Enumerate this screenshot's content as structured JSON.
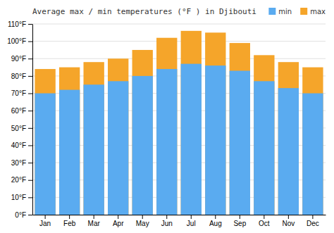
{
  "chart_data": {
    "type": "bar",
    "title": "Average max / min temperatures (°F ) in Djibouti",
    "categories": [
      "Jan",
      "Feb",
      "Mar",
      "Apr",
      "May",
      "Jun",
      "Jul",
      "Aug",
      "Sep",
      "Oct",
      "Nov",
      "Dec"
    ],
    "series": [
      {
        "name": "min",
        "color": "#5aabf0",
        "values": [
          70,
          72,
          75,
          77,
          80,
          84,
          87,
          86,
          83,
          77,
          73,
          70
        ]
      },
      {
        "name": "max",
        "color": "#f5a52a",
        "values": [
          84,
          85,
          88,
          90,
          95,
          102,
          106,
          105,
          99,
          92,
          88,
          85
        ]
      }
    ],
    "ylim": [
      0,
      110
    ],
    "yticks": [
      {
        "value": 0,
        "label": "0°F"
      },
      {
        "value": 10,
        "label": "10°F"
      },
      {
        "value": 20,
        "label": "20°F"
      },
      {
        "value": 30,
        "label": "30°F"
      },
      {
        "value": 40,
        "label": "40°F"
      },
      {
        "value": 50,
        "label": "50°F"
      },
      {
        "value": 60,
        "label": "60°F"
      },
      {
        "value": 70,
        "label": "70°F"
      },
      {
        "value": 80,
        "label": "80°F"
      },
      {
        "value": 90,
        "label": "90°F"
      },
      {
        "value": 100,
        "label": "100°F"
      },
      {
        "value": 110,
        "label": "110°F"
      }
    ],
    "grid": true,
    "legend": "top-right"
  }
}
